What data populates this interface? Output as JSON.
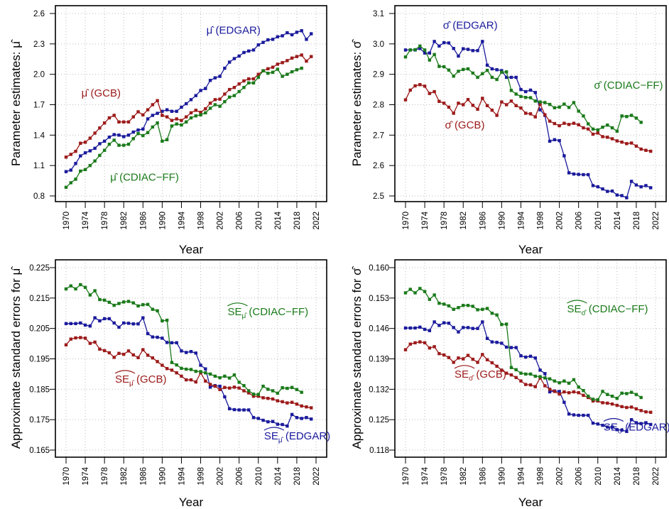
{
  "chart_data": [
    {
      "type": "line",
      "id": "mu",
      "ylabel": "Parameter estimates:",
      "ylabel_symbol": "μ̂",
      "xlabel": "Year",
      "ylim": [
        0.8,
        2.6
      ],
      "yticks": [
        0.8,
        1.1,
        1.4,
        1.7,
        2.0,
        2.3,
        2.6
      ],
      "ytick_labels": [
        "0.8",
        "1.1",
        "1.4",
        "1.7",
        "2.0",
        "2.3",
        "2.6"
      ],
      "xlim": [
        1970,
        2022
      ],
      "xticks": [
        1970,
        1974,
        1978,
        1982,
        1986,
        1990,
        1994,
        1998,
        2002,
        2006,
        2010,
        2014,
        2018,
        2022
      ],
      "grid": true,
      "series": [
        {
          "name": "EDGAR",
          "color": "#1a1a9c",
          "start_year": 1970,
          "values": [
            1.04,
            1.055,
            1.12,
            1.195,
            1.225,
            1.245,
            1.27,
            1.315,
            1.34,
            1.38,
            1.405,
            1.4,
            1.385,
            1.4,
            1.43,
            1.45,
            1.46,
            1.56,
            1.595,
            1.615,
            1.635,
            1.65,
            1.635,
            1.635,
            1.675,
            1.71,
            1.75,
            1.79,
            1.84,
            1.86,
            1.94,
            1.965,
            1.98,
            2.06,
            2.12,
            2.155,
            2.18,
            2.215,
            2.23,
            2.24,
            2.29,
            2.315,
            2.34,
            2.345,
            2.37,
            2.38,
            2.41,
            2.39,
            2.415,
            2.43,
            2.345,
            2.4
          ]
        },
        {
          "name": "GCB",
          "color": "#9c1a1a",
          "start_year": 1970,
          "values": [
            1.183,
            1.21,
            1.24,
            1.32,
            1.33,
            1.37,
            1.42,
            1.47,
            1.52,
            1.57,
            1.595,
            1.53,
            1.53,
            1.53,
            1.58,
            1.63,
            1.6,
            1.65,
            1.7,
            1.74,
            1.595,
            1.58,
            1.545,
            1.56,
            1.545,
            1.58,
            1.62,
            1.645,
            1.625,
            1.66,
            1.715,
            1.75,
            1.755,
            1.805,
            1.85,
            1.87,
            1.905,
            1.935,
            1.955,
            1.955,
            2.0,
            2.035,
            2.055,
            2.07,
            2.1,
            2.115,
            2.135,
            2.16,
            2.175,
            2.19,
            2.13,
            2.175
          ]
        },
        {
          "name": "CDIAC-FF",
          "color": "#1a7a1a",
          "start_year": 1970,
          "values": [
            0.885,
            0.93,
            0.965,
            1.045,
            1.06,
            1.1,
            1.145,
            1.2,
            1.25,
            1.31,
            1.35,
            1.3,
            1.3,
            1.31,
            1.365,
            1.415,
            1.395,
            1.425,
            1.48,
            1.52,
            1.34,
            1.355,
            1.49,
            1.51,
            1.5,
            1.53,
            1.57,
            1.59,
            1.6,
            1.62,
            1.665,
            1.7,
            1.685,
            1.73,
            1.775,
            1.79,
            1.83,
            1.87,
            1.915,
            1.915,
            1.97,
            2.035,
            2.01,
            2.02,
            2.05,
            1.98,
            2.0,
            2.025,
            2.045,
            2.06
          ]
        }
      ],
      "annotations": [
        {
          "series": "EDGAR",
          "symbol": "μ̂",
          "text": "(EDGAR)",
          "x": 1999.2,
          "y": 2.4
        },
        {
          "series": "GCB",
          "symbol": "μ̂",
          "text": "(GCB)",
          "x": 1973.2,
          "y": 1.78
        },
        {
          "series": "CDIAC-FF",
          "symbol": "μ̂",
          "text": "(CDIAC−FF)",
          "x": 1979.2,
          "y": 0.95
        }
      ]
    },
    {
      "type": "line",
      "id": "sigma",
      "ylabel": "Parameter estimates:",
      "ylabel_symbol": "σ̂",
      "xlabel": "Year",
      "ylim": [
        2.5,
        3.1
      ],
      "yticks": [
        2.5,
        2.6,
        2.7,
        2.8,
        2.9,
        3.0,
        3.1
      ],
      "ytick_labels": [
        "2.5",
        "2.6",
        "2.7",
        "2.8",
        "2.9",
        "3.0",
        "3.1"
      ],
      "xlim": [
        1970,
        2022
      ],
      "xticks": [
        1970,
        1974,
        1978,
        1982,
        1986,
        1990,
        1994,
        1998,
        2002,
        2006,
        2010,
        2014,
        2018,
        2022
      ],
      "grid": true,
      "series": [
        {
          "name": "EDGAR",
          "color": "#1a1a9c",
          "start_year": 1970,
          "values": [
            2.98,
            2.98,
            2.98,
            2.985,
            2.97,
            2.97,
            3.008,
            2.993,
            3.004,
            3.003,
            2.985,
            2.96,
            2.984,
            2.982,
            2.978,
            2.978,
            3.008,
            2.93,
            2.918,
            2.915,
            2.912,
            2.89,
            2.89,
            2.89,
            2.85,
            2.843,
            2.848,
            2.84,
            2.783,
            2.765,
            2.68,
            2.685,
            2.682,
            2.632,
            2.576,
            2.572,
            2.571,
            2.57,
            2.57,
            2.534,
            2.53,
            2.523,
            2.515,
            2.516,
            2.503,
            2.501,
            2.494,
            2.548,
            2.536,
            2.53,
            2.534,
            2.527
          ]
        },
        {
          "name": "GCB",
          "color": "#9c1a1a",
          "start_year": 1970,
          "values": [
            2.816,
            2.848,
            2.862,
            2.866,
            2.861,
            2.837,
            2.843,
            2.811,
            2.805,
            2.792,
            2.772,
            2.805,
            2.8,
            2.817,
            2.798,
            2.785,
            2.821,
            2.797,
            2.782,
            2.765,
            2.809,
            2.8,
            2.812,
            2.797,
            2.789,
            2.772,
            2.77,
            2.76,
            2.802,
            2.767,
            2.746,
            2.738,
            2.731,
            2.739,
            2.735,
            2.739,
            2.734,
            2.724,
            2.72,
            2.703,
            2.707,
            2.695,
            2.693,
            2.688,
            2.681,
            2.677,
            2.672,
            2.674,
            2.664,
            2.654,
            2.65,
            2.647
          ]
        },
        {
          "name": "CDIAC-FF",
          "color": "#1a7a1a",
          "start_year": 1970,
          "values": [
            2.957,
            2.98,
            2.981,
            2.993,
            2.98,
            2.947,
            2.965,
            2.926,
            2.925,
            2.914,
            2.894,
            2.91,
            2.916,
            2.918,
            2.904,
            2.89,
            2.902,
            2.913,
            2.89,
            2.883,
            2.907,
            2.908,
            2.847,
            2.835,
            2.827,
            2.824,
            2.823,
            2.812,
            2.809,
            2.807,
            2.801,
            2.79,
            2.792,
            2.802,
            2.791,
            2.807,
            2.779,
            2.763,
            2.737,
            2.72,
            2.717,
            2.726,
            2.733,
            2.724,
            2.713,
            2.763,
            2.761,
            2.765,
            2.756,
            2.742
          ]
        }
      ],
      "annotations": [
        {
          "series": "EDGAR",
          "symbol": "σ̂",
          "text": "(EDGAR)",
          "x": 1977.8,
          "y": 3.05
        },
        {
          "series": "CDIAC-FF",
          "symbol": "σ̂",
          "text": "(CDIAC−FF)",
          "x": 2009.2,
          "y": 2.853
        },
        {
          "series": "GCB",
          "symbol": "σ̂",
          "text": "(GCB)",
          "x": 1978.2,
          "y": 2.722
        }
      ]
    },
    {
      "type": "line",
      "id": "se_mu",
      "ylabel": "Approximate standard errors for",
      "ylabel_symbol": "μ̂",
      "xlabel": "Year",
      "ylim": [
        0.165,
        0.225
      ],
      "yticks": [
        0.165,
        0.175,
        0.185,
        0.195,
        0.205,
        0.215,
        0.225
      ],
      "ytick_labels": [
        "0.165",
        "0.175",
        "0.185",
        "0.195",
        "0.205",
        "0.215",
        "0.225"
      ],
      "xlim": [
        1970,
        2022
      ],
      "xticks": [
        1970,
        1974,
        1978,
        1982,
        1986,
        1990,
        1994,
        1998,
        2002,
        2006,
        2010,
        2014,
        2018,
        2022
      ],
      "grid": true,
      "series": [
        {
          "name": "EDGAR",
          "color": "#1a1a9c",
          "start_year": 1970,
          "values": [
            0.2066,
            0.2066,
            0.2066,
            0.2068,
            0.2061,
            0.2058,
            0.2085,
            0.2075,
            0.2082,
            0.2082,
            0.2068,
            0.2054,
            0.2068,
            0.2067,
            0.2065,
            0.2065,
            0.2085,
            0.2033,
            0.2022,
            0.2021,
            0.2018,
            0.2004,
            0.2003,
            0.2003,
            0.1976,
            0.1971,
            0.1974,
            0.1969,
            0.1929,
            0.1917,
            0.1857,
            0.1862,
            0.186,
            0.1825,
            0.1786,
            0.1783,
            0.1782,
            0.1782,
            0.1782,
            0.1757,
            0.1754,
            0.1748,
            0.1743,
            0.1744,
            0.1735,
            0.1734,
            0.1729,
            0.1767,
            0.1757,
            0.1754,
            0.1757,
            0.1752
          ]
        },
        {
          "name": "GCB",
          "color": "#9c1a1a",
          "start_year": 1970,
          "values": [
            0.1996,
            0.2015,
            0.2019,
            0.202,
            0.2018,
            0.2001,
            0.2005,
            0.1982,
            0.1977,
            0.197,
            0.1955,
            0.1968,
            0.1965,
            0.1976,
            0.1963,
            0.1954,
            0.198,
            0.1962,
            0.1953,
            0.1941,
            0.1929,
            0.1918,
            0.1913,
            0.1904,
            0.1893,
            0.1881,
            0.1881,
            0.1874,
            0.1904,
            0.1877,
            0.1866,
            0.186,
            0.1849,
            0.1856,
            0.1854,
            0.1857,
            0.1854,
            0.1845,
            0.1838,
            0.1827,
            0.1827,
            0.1822,
            0.182,
            0.1818,
            0.1812,
            0.1809,
            0.1805,
            0.1807,
            0.1801,
            0.1795,
            0.1792,
            0.1789
          ]
        },
        {
          "name": "CDIAC-FF",
          "color": "#1a7a1a",
          "start_year": 1970,
          "values": [
            0.218,
            0.219,
            0.218,
            0.2194,
            0.2185,
            0.216,
            0.2174,
            0.2145,
            0.2143,
            0.2136,
            0.2126,
            0.2132,
            0.2137,
            0.2139,
            0.2134,
            0.2124,
            0.2128,
            0.2129,
            0.2113,
            0.2108,
            0.2075,
            0.2077,
            0.1938,
            0.193,
            0.1919,
            0.1916,
            0.1915,
            0.1909,
            0.1908,
            0.1904,
            0.19,
            0.1893,
            0.1888,
            0.1893,
            0.1887,
            0.1897,
            0.1873,
            0.1862,
            0.1845,
            0.1834,
            0.1833,
            0.186,
            0.185,
            0.1845,
            0.1837,
            0.1855,
            0.1853,
            0.1856,
            0.1849,
            0.184
          ]
        }
      ],
      "annotations": [
        {
          "series": "CDIAC-FF",
          "symbol": "SE",
          "sub": "μ̂",
          "text": "(CDIAC−FF)",
          "x": 2003.6,
          "y": 0.2094
        },
        {
          "series": "GCB",
          "symbol": "SE",
          "sub": "μ̂",
          "text": "(GCB)",
          "x": 1980.2,
          "y": 0.1872
        },
        {
          "series": "EDGAR",
          "symbol": "SE",
          "sub": "μ̂",
          "text": "(EDGAR)",
          "x": 2011.2,
          "y": 0.1685
        }
      ]
    },
    {
      "type": "line",
      "id": "se_sigma",
      "ylabel": "Approximate standard errors for",
      "ylabel_symbol": "σ̂",
      "xlabel": "Year",
      "ylim": [
        0.118,
        0.16
      ],
      "yticks": [
        0.118,
        0.125,
        0.132,
        0.139,
        0.146,
        0.153,
        0.16
      ],
      "ytick_labels": [
        "0.118",
        "0.125",
        "0.132",
        "0.139",
        "0.146",
        "0.153",
        "0.160"
      ],
      "xlim": [
        1970,
        2022
      ],
      "xticks": [
        1970,
        1974,
        1978,
        1982,
        1986,
        1990,
        1994,
        1998,
        2002,
        2006,
        2010,
        2014,
        2018,
        2022
      ],
      "grid": true,
      "series": [
        {
          "name": "EDGAR",
          "color": "#1a1a9c",
          "start_year": 1970,
          "values": [
            0.1461,
            0.1461,
            0.1461,
            0.1463,
            0.1458,
            0.1455,
            0.1475,
            0.1467,
            0.1473,
            0.1472,
            0.1462,
            0.1452,
            0.1462,
            0.1462,
            0.146,
            0.146,
            0.1475,
            0.1437,
            0.1429,
            0.1428,
            0.1426,
            0.1417,
            0.1416,
            0.1416,
            0.1397,
            0.1394,
            0.1396,
            0.1392,
            0.1364,
            0.1356,
            0.1314,
            0.1316,
            0.1315,
            0.129,
            0.1263,
            0.1261,
            0.126,
            0.126,
            0.126,
            0.1242,
            0.124,
            0.1237,
            0.1233,
            0.1233,
            0.1227,
            0.1226,
            0.1223,
            0.125,
            0.1243,
            0.1241,
            0.1243,
            0.1239
          ]
        },
        {
          "name": "GCB",
          "color": "#9c1a1a",
          "start_year": 1970,
          "values": [
            0.1411,
            0.1424,
            0.1427,
            0.1429,
            0.1427,
            0.1415,
            0.1418,
            0.1402,
            0.1399,
            0.1393,
            0.1382,
            0.1392,
            0.139,
            0.1398,
            0.1389,
            0.1382,
            0.14,
            0.1388,
            0.1381,
            0.1373,
            0.1364,
            0.1357,
            0.1353,
            0.1347,
            0.1339,
            0.1331,
            0.133,
            0.1326,
            0.1346,
            0.1328,
            0.132,
            0.1315,
            0.1309,
            0.1314,
            0.1312,
            0.1314,
            0.1312,
            0.1306,
            0.1301,
            0.1293,
            0.1293,
            0.1289,
            0.1288,
            0.1286,
            0.1283,
            0.128,
            0.1278,
            0.1279,
            0.1275,
            0.1271,
            0.1268,
            0.1267
          ]
        },
        {
          "name": "CDIAC-FF",
          "color": "#1a7a1a",
          "start_year": 1970,
          "values": [
            0.1542,
            0.155,
            0.1542,
            0.1552,
            0.1545,
            0.1527,
            0.1537,
            0.1518,
            0.1516,
            0.1512,
            0.1504,
            0.1508,
            0.1513,
            0.1513,
            0.1511,
            0.1503,
            0.1504,
            0.1506,
            0.1495,
            0.1491,
            0.1469,
            0.147,
            0.137,
            0.1365,
            0.1357,
            0.1355,
            0.1355,
            0.135,
            0.1349,
            0.1346,
            0.1344,
            0.1339,
            0.1335,
            0.1339,
            0.1334,
            0.1342,
            0.1325,
            0.1317,
            0.1304,
            0.1297,
            0.1296,
            0.1315,
            0.1308,
            0.1304,
            0.1299,
            0.1311,
            0.131,
            0.1313,
            0.1308,
            0.1301
          ]
        }
      ],
      "annotations": [
        {
          "series": "CDIAC-FF",
          "symbol": "SE",
          "sub": "σ̂",
          "text": "(CDIAC−FF)",
          "x": 2003.6,
          "y": 0.1497
        },
        {
          "series": "GCB",
          "symbol": "SE",
          "sub": "σ̂",
          "text": "(GCB)",
          "x": 1980.2,
          "y": 0.1347
        },
        {
          "series": "EDGAR",
          "symbol": "SE",
          "sub": "σ̂",
          "text": "(EDGAR)",
          "x": 2011.2,
          "y": 0.1225
        }
      ]
    }
  ]
}
